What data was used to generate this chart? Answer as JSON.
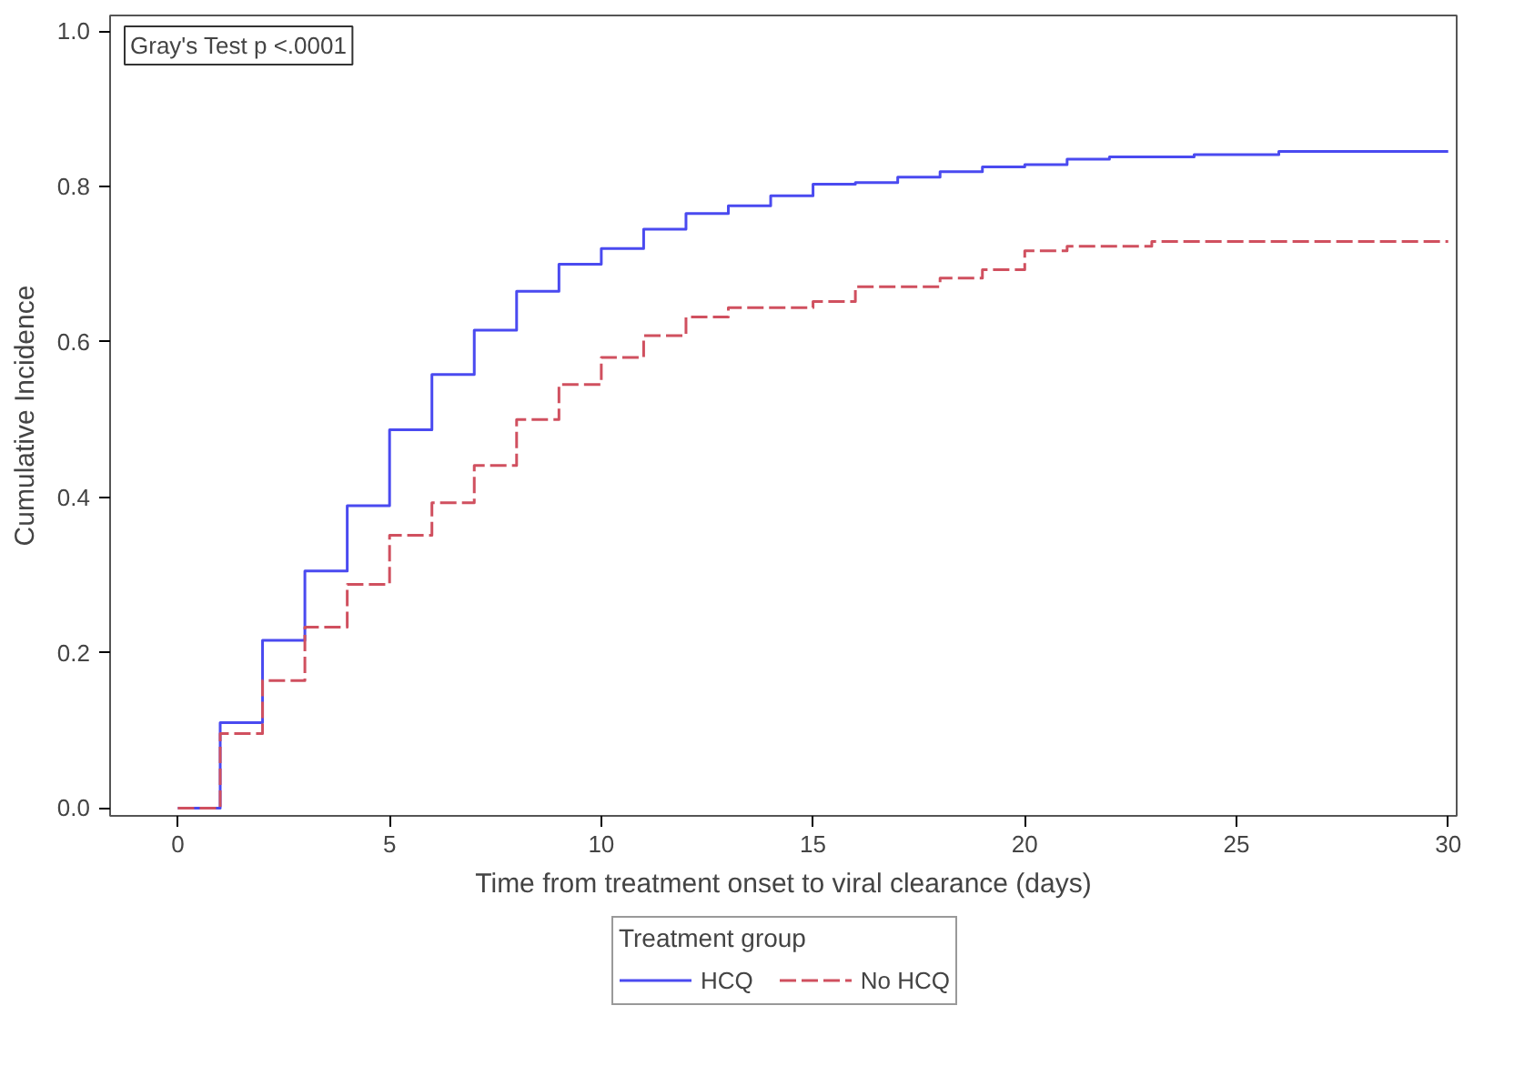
{
  "chart_data": {
    "type": "step",
    "xlabel": "Time from treatment onset to viral clearance (days)",
    "ylabel": "Cumulative Incidence",
    "legend_title": "Treatment group",
    "annotations": [
      "Gray's Test p <.0001"
    ],
    "xlim": [
      -1.6,
      30.2
    ],
    "ylim": [
      -0.01,
      1.02
    ],
    "xticks": [
      0,
      5,
      10,
      15,
      20,
      25,
      30
    ],
    "yticks": [
      {
        "value": 0,
        "label": "0.0"
      },
      {
        "value": 0.2,
        "label": "0.2"
      },
      {
        "value": 0.4,
        "label": "0.4"
      },
      {
        "value": 0.6,
        "label": "0.6"
      },
      {
        "value": 0.8,
        "label": "0.8"
      },
      {
        "value": 1.0,
        "label": "1.0"
      }
    ],
    "grid": false,
    "legend": "bottom",
    "series": [
      {
        "name": "HCQ",
        "color": "#4a4af0",
        "line_style": "solid",
        "x": [
          0,
          1,
          2,
          3,
          4,
          5,
          6,
          7,
          8,
          9,
          10,
          11,
          12,
          13,
          14,
          15,
          16,
          17,
          18,
          19,
          20,
          21,
          22,
          24,
          26,
          30
        ],
        "values": [
          0,
          0.11,
          0.216,
          0.305,
          0.389,
          0.487,
          0.558,
          0.615,
          0.665,
          0.7,
          0.72,
          0.745,
          0.765,
          0.775,
          0.788,
          0.803,
          0.805,
          0.812,
          0.819,
          0.825,
          0.828,
          0.835,
          0.838,
          0.841,
          0.845,
          0.845
        ]
      },
      {
        "name": "No HCQ",
        "color": "#d0505f",
        "line_style": "dashed",
        "x": [
          0,
          1,
          2,
          3,
          4,
          5,
          6,
          7,
          8,
          9,
          10,
          11,
          12,
          13,
          15,
          16,
          18,
          19,
          20,
          21,
          23,
          30
        ],
        "values": [
          0,
          0.096,
          0.164,
          0.233,
          0.288,
          0.351,
          0.393,
          0.441,
          0.5,
          0.545,
          0.58,
          0.608,
          0.632,
          0.644,
          0.652,
          0.671,
          0.682,
          0.693,
          0.717,
          0.723,
          0.729,
          0.729
        ]
      }
    ]
  }
}
